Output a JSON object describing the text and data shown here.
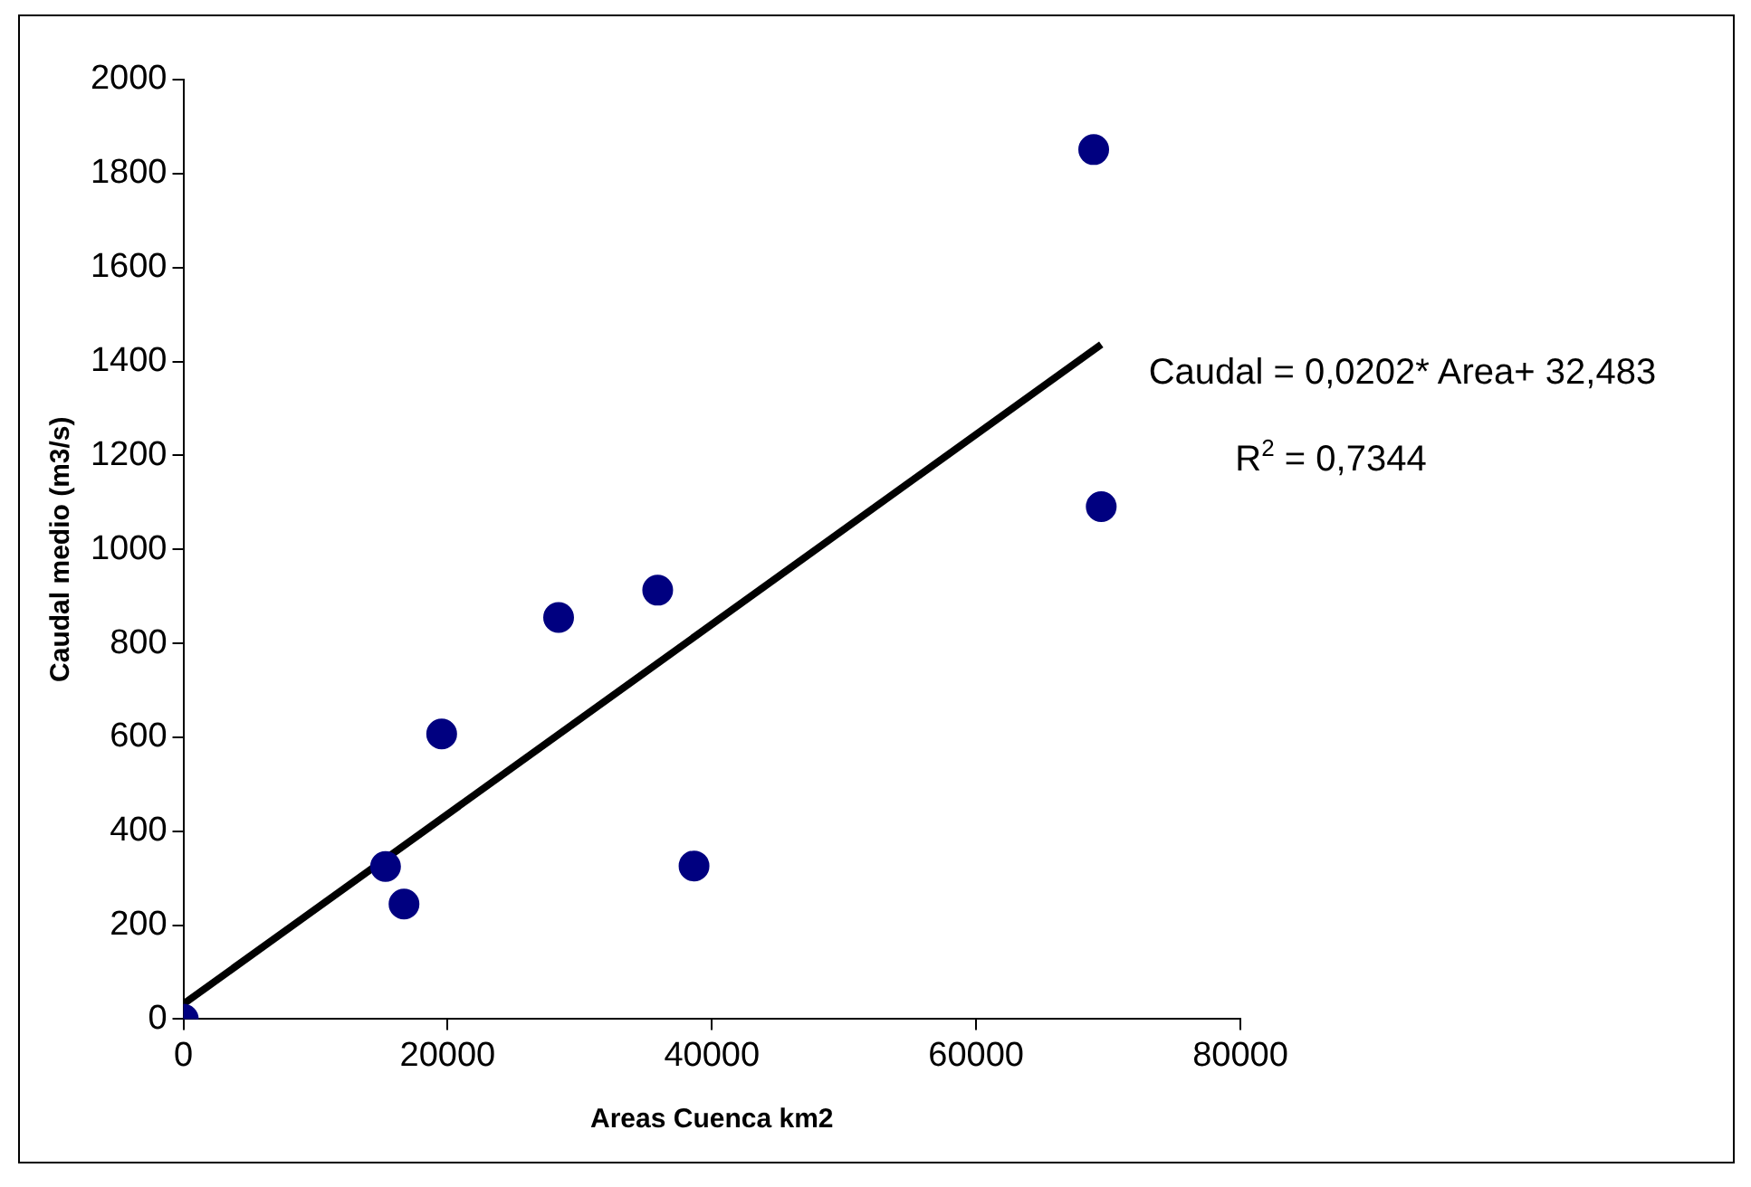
{
  "chart_data": {
    "type": "scatter",
    "xlabel": "Areas Cuenca km2",
    "ylabel": "Caudal medio (m3/s)",
    "xlim": [
      0,
      80000
    ],
    "xticks": [
      0,
      20000,
      40000,
      60000,
      80000
    ],
    "ylim": [
      0,
      2000
    ],
    "yticks": [
      0,
      200,
      400,
      600,
      800,
      1000,
      1200,
      1400,
      1600,
      1800,
      2000
    ],
    "grid": false,
    "legend": false,
    "marker": "circle",
    "series": [
      {
        "type": "scatter",
        "color": "#000080",
        "x": [
          0,
          15300,
          16700,
          19550,
          28400,
          35900,
          38650,
          68900,
          69470
        ],
        "values": [
          0,
          325,
          245,
          607,
          855,
          913,
          326,
          1851,
          1091
        ]
      },
      {
        "type": "line",
        "color": "#000000",
        "marker": "none",
        "x": [
          0,
          69470
        ],
        "values": [
          32,
          1436
        ]
      }
    ],
    "annotations": [
      "Caudal = 0,0202* Area+ 32,483",
      "R$^{2}$ = 0,7344"
    ]
  }
}
